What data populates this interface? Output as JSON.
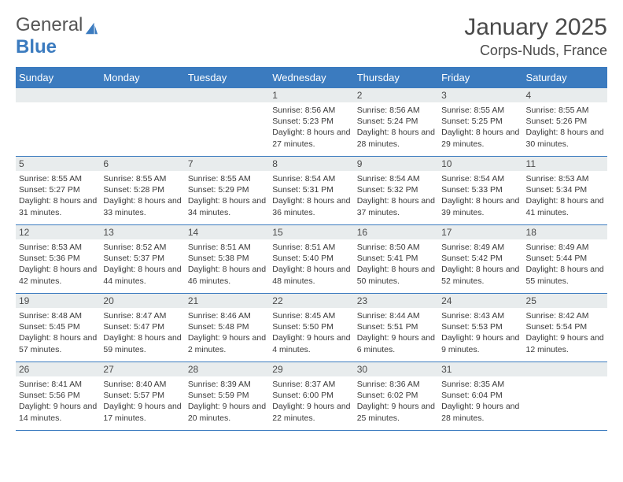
{
  "brand": {
    "name_part1": "General",
    "name_part2": "Blue",
    "text_color": "#555555",
    "accent_color": "#3b7bbf"
  },
  "title": {
    "month": "January 2025",
    "location": "Corps-Nuds, France",
    "month_fontsize": 30,
    "location_fontsize": 18,
    "text_color": "#4a4a4a"
  },
  "calendar": {
    "header_bg": "#3b7bbf",
    "header_fg": "#ffffff",
    "row_border_color": "#3b7bbf",
    "daynum_bg": "#e8eced",
    "daynum_fg": "#4a4a4a",
    "content_fg": "#3a3a3a",
    "days_of_week": [
      "Sunday",
      "Monday",
      "Tuesday",
      "Wednesday",
      "Thursday",
      "Friday",
      "Saturday"
    ],
    "weeks": [
      [
        {
          "num": "",
          "sunrise": "",
          "sunset": "",
          "daylight": ""
        },
        {
          "num": "",
          "sunrise": "",
          "sunset": "",
          "daylight": ""
        },
        {
          "num": "",
          "sunrise": "",
          "sunset": "",
          "daylight": ""
        },
        {
          "num": "1",
          "sunrise": "Sunrise: 8:56 AM",
          "sunset": "Sunset: 5:23 PM",
          "daylight": "Daylight: 8 hours and 27 minutes."
        },
        {
          "num": "2",
          "sunrise": "Sunrise: 8:56 AM",
          "sunset": "Sunset: 5:24 PM",
          "daylight": "Daylight: 8 hours and 28 minutes."
        },
        {
          "num": "3",
          "sunrise": "Sunrise: 8:55 AM",
          "sunset": "Sunset: 5:25 PM",
          "daylight": "Daylight: 8 hours and 29 minutes."
        },
        {
          "num": "4",
          "sunrise": "Sunrise: 8:55 AM",
          "sunset": "Sunset: 5:26 PM",
          "daylight": "Daylight: 8 hours and 30 minutes."
        }
      ],
      [
        {
          "num": "5",
          "sunrise": "Sunrise: 8:55 AM",
          "sunset": "Sunset: 5:27 PM",
          "daylight": "Daylight: 8 hours and 31 minutes."
        },
        {
          "num": "6",
          "sunrise": "Sunrise: 8:55 AM",
          "sunset": "Sunset: 5:28 PM",
          "daylight": "Daylight: 8 hours and 33 minutes."
        },
        {
          "num": "7",
          "sunrise": "Sunrise: 8:55 AM",
          "sunset": "Sunset: 5:29 PM",
          "daylight": "Daylight: 8 hours and 34 minutes."
        },
        {
          "num": "8",
          "sunrise": "Sunrise: 8:54 AM",
          "sunset": "Sunset: 5:31 PM",
          "daylight": "Daylight: 8 hours and 36 minutes."
        },
        {
          "num": "9",
          "sunrise": "Sunrise: 8:54 AM",
          "sunset": "Sunset: 5:32 PM",
          "daylight": "Daylight: 8 hours and 37 minutes."
        },
        {
          "num": "10",
          "sunrise": "Sunrise: 8:54 AM",
          "sunset": "Sunset: 5:33 PM",
          "daylight": "Daylight: 8 hours and 39 minutes."
        },
        {
          "num": "11",
          "sunrise": "Sunrise: 8:53 AM",
          "sunset": "Sunset: 5:34 PM",
          "daylight": "Daylight: 8 hours and 41 minutes."
        }
      ],
      [
        {
          "num": "12",
          "sunrise": "Sunrise: 8:53 AM",
          "sunset": "Sunset: 5:36 PM",
          "daylight": "Daylight: 8 hours and 42 minutes."
        },
        {
          "num": "13",
          "sunrise": "Sunrise: 8:52 AM",
          "sunset": "Sunset: 5:37 PM",
          "daylight": "Daylight: 8 hours and 44 minutes."
        },
        {
          "num": "14",
          "sunrise": "Sunrise: 8:51 AM",
          "sunset": "Sunset: 5:38 PM",
          "daylight": "Daylight: 8 hours and 46 minutes."
        },
        {
          "num": "15",
          "sunrise": "Sunrise: 8:51 AM",
          "sunset": "Sunset: 5:40 PM",
          "daylight": "Daylight: 8 hours and 48 minutes."
        },
        {
          "num": "16",
          "sunrise": "Sunrise: 8:50 AM",
          "sunset": "Sunset: 5:41 PM",
          "daylight": "Daylight: 8 hours and 50 minutes."
        },
        {
          "num": "17",
          "sunrise": "Sunrise: 8:49 AM",
          "sunset": "Sunset: 5:42 PM",
          "daylight": "Daylight: 8 hours and 52 minutes."
        },
        {
          "num": "18",
          "sunrise": "Sunrise: 8:49 AM",
          "sunset": "Sunset: 5:44 PM",
          "daylight": "Daylight: 8 hours and 55 minutes."
        }
      ],
      [
        {
          "num": "19",
          "sunrise": "Sunrise: 8:48 AM",
          "sunset": "Sunset: 5:45 PM",
          "daylight": "Daylight: 8 hours and 57 minutes."
        },
        {
          "num": "20",
          "sunrise": "Sunrise: 8:47 AM",
          "sunset": "Sunset: 5:47 PM",
          "daylight": "Daylight: 8 hours and 59 minutes."
        },
        {
          "num": "21",
          "sunrise": "Sunrise: 8:46 AM",
          "sunset": "Sunset: 5:48 PM",
          "daylight": "Daylight: 9 hours and 2 minutes."
        },
        {
          "num": "22",
          "sunrise": "Sunrise: 8:45 AM",
          "sunset": "Sunset: 5:50 PM",
          "daylight": "Daylight: 9 hours and 4 minutes."
        },
        {
          "num": "23",
          "sunrise": "Sunrise: 8:44 AM",
          "sunset": "Sunset: 5:51 PM",
          "daylight": "Daylight: 9 hours and 6 minutes."
        },
        {
          "num": "24",
          "sunrise": "Sunrise: 8:43 AM",
          "sunset": "Sunset: 5:53 PM",
          "daylight": "Daylight: 9 hours and 9 minutes."
        },
        {
          "num": "25",
          "sunrise": "Sunrise: 8:42 AM",
          "sunset": "Sunset: 5:54 PM",
          "daylight": "Daylight: 9 hours and 12 minutes."
        }
      ],
      [
        {
          "num": "26",
          "sunrise": "Sunrise: 8:41 AM",
          "sunset": "Sunset: 5:56 PM",
          "daylight": "Daylight: 9 hours and 14 minutes."
        },
        {
          "num": "27",
          "sunrise": "Sunrise: 8:40 AM",
          "sunset": "Sunset: 5:57 PM",
          "daylight": "Daylight: 9 hours and 17 minutes."
        },
        {
          "num": "28",
          "sunrise": "Sunrise: 8:39 AM",
          "sunset": "Sunset: 5:59 PM",
          "daylight": "Daylight: 9 hours and 20 minutes."
        },
        {
          "num": "29",
          "sunrise": "Sunrise: 8:37 AM",
          "sunset": "Sunset: 6:00 PM",
          "daylight": "Daylight: 9 hours and 22 minutes."
        },
        {
          "num": "30",
          "sunrise": "Sunrise: 8:36 AM",
          "sunset": "Sunset: 6:02 PM",
          "daylight": "Daylight: 9 hours and 25 minutes."
        },
        {
          "num": "31",
          "sunrise": "Sunrise: 8:35 AM",
          "sunset": "Sunset: 6:04 PM",
          "daylight": "Daylight: 9 hours and 28 minutes."
        },
        {
          "num": "",
          "sunrise": "",
          "sunset": "",
          "daylight": ""
        }
      ]
    ]
  }
}
